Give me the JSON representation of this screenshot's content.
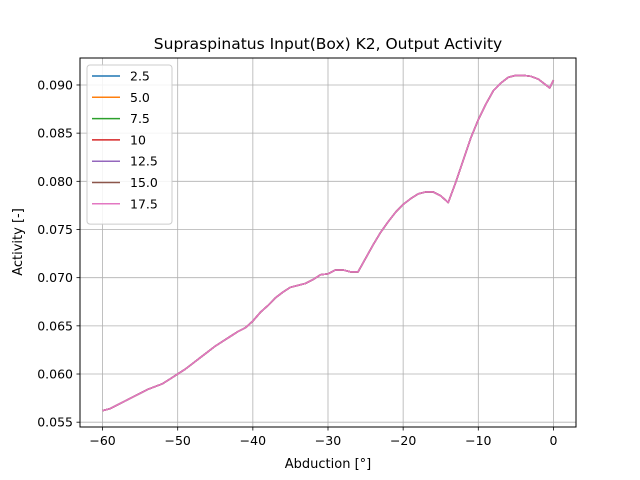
{
  "chart_data": {
    "type": "line",
    "title": "Supraspinatus Input(Box) K2, Output Activity",
    "xlabel": "Abduction [°]",
    "ylabel": "Activity [-]",
    "xlim": [
      -63,
      3
    ],
    "ylim": [
      0.0545,
      0.0928
    ],
    "xticks": [
      -60,
      -50,
      -40,
      -30,
      -20,
      -10,
      0
    ],
    "yticks": [
      0.055,
      0.06,
      0.065,
      0.07,
      0.075,
      0.08,
      0.085,
      0.09
    ],
    "ytick_labels": [
      "0.055",
      "0.060",
      "0.065",
      "0.070",
      "0.075",
      "0.080",
      "0.085",
      "0.090"
    ],
    "grid": true,
    "legend_position": "upper-left",
    "x": [
      -60,
      -59,
      -58,
      -57,
      -56,
      -55,
      -54,
      -53,
      -52,
      -51,
      -50,
      -49,
      -48,
      -47,
      -46,
      -45,
      -44,
      -43,
      -42,
      -41,
      -40,
      -39,
      -38,
      -37,
      -36,
      -35,
      -34,
      -33,
      -32,
      -31,
      -30,
      -29,
      -28,
      -27,
      -26,
      -25,
      -24,
      -23,
      -22,
      -21,
      -20,
      -19,
      -18,
      -17,
      -16,
      -15,
      -14,
      -13,
      -12,
      -11,
      -10,
      -9,
      -8,
      -7,
      -6,
      -5,
      -4,
      -3,
      -2,
      -1,
      -0.5,
      0
    ],
    "series": [
      {
        "name": "2.5",
        "color": "#1f77b4",
        "values": [
          0.0562,
          0.0564,
          0.0568,
          0.0572,
          0.0576,
          0.058,
          0.0584,
          0.0587,
          0.059,
          0.0595,
          0.06,
          0.0605,
          0.0611,
          0.0617,
          0.0623,
          0.0629,
          0.0634,
          0.0639,
          0.0644,
          0.0648,
          0.0655,
          0.0664,
          0.0671,
          0.0679,
          0.0685,
          0.069,
          0.0692,
          0.0694,
          0.0698,
          0.0703,
          0.0704,
          0.0708,
          0.0708,
          0.0706,
          0.0706,
          0.072,
          0.0734,
          0.0747,
          0.0758,
          0.0768,
          0.0776,
          0.0782,
          0.0787,
          0.0789,
          0.0789,
          0.0785,
          0.0778,
          0.0799,
          0.0822,
          0.0845,
          0.0864,
          0.088,
          0.0894,
          0.0902,
          0.0908,
          0.091,
          0.091,
          0.0909,
          0.0906,
          0.09,
          0.0897,
          0.0905
        ]
      },
      {
        "name": "5.0",
        "color": "#ff7f0e",
        "values": [
          0.0562,
          0.0564,
          0.0568,
          0.0572,
          0.0576,
          0.058,
          0.0584,
          0.0587,
          0.059,
          0.0595,
          0.06,
          0.0605,
          0.0611,
          0.0617,
          0.0623,
          0.0629,
          0.0634,
          0.0639,
          0.0644,
          0.0648,
          0.0655,
          0.0664,
          0.0671,
          0.0679,
          0.0685,
          0.069,
          0.0692,
          0.0694,
          0.0698,
          0.0703,
          0.0704,
          0.0708,
          0.0708,
          0.0706,
          0.0706,
          0.072,
          0.0734,
          0.0747,
          0.0758,
          0.0768,
          0.0776,
          0.0782,
          0.0787,
          0.0789,
          0.0789,
          0.0785,
          0.0778,
          0.0799,
          0.0822,
          0.0845,
          0.0864,
          0.088,
          0.0894,
          0.0902,
          0.0908,
          0.091,
          0.091,
          0.0909,
          0.0906,
          0.09,
          0.0897,
          0.0905
        ]
      },
      {
        "name": "7.5",
        "color": "#2ca02c",
        "values": [
          0.0562,
          0.0564,
          0.0568,
          0.0572,
          0.0576,
          0.058,
          0.0584,
          0.0587,
          0.059,
          0.0595,
          0.06,
          0.0605,
          0.0611,
          0.0617,
          0.0623,
          0.0629,
          0.0634,
          0.0639,
          0.0644,
          0.0648,
          0.0655,
          0.0664,
          0.0671,
          0.0679,
          0.0685,
          0.069,
          0.0692,
          0.0694,
          0.0698,
          0.0703,
          0.0704,
          0.0708,
          0.0708,
          0.0706,
          0.0706,
          0.072,
          0.0734,
          0.0747,
          0.0758,
          0.0768,
          0.0776,
          0.0782,
          0.0787,
          0.0789,
          0.0789,
          0.0785,
          0.0778,
          0.0799,
          0.0822,
          0.0845,
          0.0864,
          0.088,
          0.0894,
          0.0902,
          0.0908,
          0.091,
          0.091,
          0.0909,
          0.0906,
          0.09,
          0.0897,
          0.0905
        ]
      },
      {
        "name": "10",
        "color": "#d62728",
        "values": [
          0.0562,
          0.0564,
          0.0568,
          0.0572,
          0.0576,
          0.058,
          0.0584,
          0.0587,
          0.059,
          0.0595,
          0.06,
          0.0605,
          0.0611,
          0.0617,
          0.0623,
          0.0629,
          0.0634,
          0.0639,
          0.0644,
          0.0648,
          0.0655,
          0.0664,
          0.0671,
          0.0679,
          0.0685,
          0.069,
          0.0692,
          0.0694,
          0.0698,
          0.0703,
          0.0704,
          0.0708,
          0.0708,
          0.0706,
          0.0706,
          0.072,
          0.0734,
          0.0747,
          0.0758,
          0.0768,
          0.0776,
          0.0782,
          0.0787,
          0.0789,
          0.0789,
          0.0785,
          0.0778,
          0.0799,
          0.0822,
          0.0845,
          0.0864,
          0.088,
          0.0894,
          0.0902,
          0.0908,
          0.091,
          0.091,
          0.0909,
          0.0906,
          0.09,
          0.0897,
          0.0905
        ]
      },
      {
        "name": "12.5",
        "color": "#9467bd",
        "values": [
          0.0562,
          0.0564,
          0.0568,
          0.0572,
          0.0576,
          0.058,
          0.0584,
          0.0587,
          0.059,
          0.0595,
          0.06,
          0.0605,
          0.0611,
          0.0617,
          0.0623,
          0.0629,
          0.0634,
          0.0639,
          0.0644,
          0.0648,
          0.0655,
          0.0664,
          0.0671,
          0.0679,
          0.0685,
          0.069,
          0.0692,
          0.0694,
          0.0698,
          0.0703,
          0.0704,
          0.0708,
          0.0708,
          0.0706,
          0.0706,
          0.072,
          0.0734,
          0.0747,
          0.0758,
          0.0768,
          0.0776,
          0.0782,
          0.0787,
          0.0789,
          0.0789,
          0.0785,
          0.0778,
          0.0799,
          0.0822,
          0.0845,
          0.0864,
          0.088,
          0.0894,
          0.0902,
          0.0908,
          0.091,
          0.091,
          0.0909,
          0.0906,
          0.09,
          0.0897,
          0.0905
        ]
      },
      {
        "name": "15.0",
        "color": "#8c564b",
        "values": [
          0.0562,
          0.0564,
          0.0568,
          0.0572,
          0.0576,
          0.058,
          0.0584,
          0.0587,
          0.059,
          0.0595,
          0.06,
          0.0605,
          0.0611,
          0.0617,
          0.0623,
          0.0629,
          0.0634,
          0.0639,
          0.0644,
          0.0648,
          0.0655,
          0.0664,
          0.0671,
          0.0679,
          0.0685,
          0.069,
          0.0692,
          0.0694,
          0.0698,
          0.0703,
          0.0704,
          0.0708,
          0.0708,
          0.0706,
          0.0706,
          0.072,
          0.0734,
          0.0747,
          0.0758,
          0.0768,
          0.0776,
          0.0782,
          0.0787,
          0.0789,
          0.0789,
          0.0785,
          0.0778,
          0.0799,
          0.0822,
          0.0845,
          0.0864,
          0.088,
          0.0894,
          0.0902,
          0.0908,
          0.091,
          0.091,
          0.0909,
          0.0906,
          0.09,
          0.0897,
          0.0905
        ]
      },
      {
        "name": "17.5",
        "color": "#e377c2",
        "values": [
          0.0562,
          0.0564,
          0.0568,
          0.0572,
          0.0576,
          0.058,
          0.0584,
          0.0587,
          0.059,
          0.0595,
          0.06,
          0.0605,
          0.0611,
          0.0617,
          0.0623,
          0.0629,
          0.0634,
          0.0639,
          0.0644,
          0.0648,
          0.0655,
          0.0664,
          0.0671,
          0.0679,
          0.0685,
          0.069,
          0.0692,
          0.0694,
          0.0698,
          0.0703,
          0.0704,
          0.0708,
          0.0708,
          0.0706,
          0.0706,
          0.072,
          0.0734,
          0.0747,
          0.0758,
          0.0768,
          0.0776,
          0.0782,
          0.0787,
          0.0789,
          0.0789,
          0.0785,
          0.0778,
          0.0799,
          0.0822,
          0.0845,
          0.0864,
          0.088,
          0.0894,
          0.0902,
          0.0908,
          0.091,
          0.091,
          0.0909,
          0.0906,
          0.09,
          0.0897,
          0.0905
        ]
      }
    ]
  }
}
